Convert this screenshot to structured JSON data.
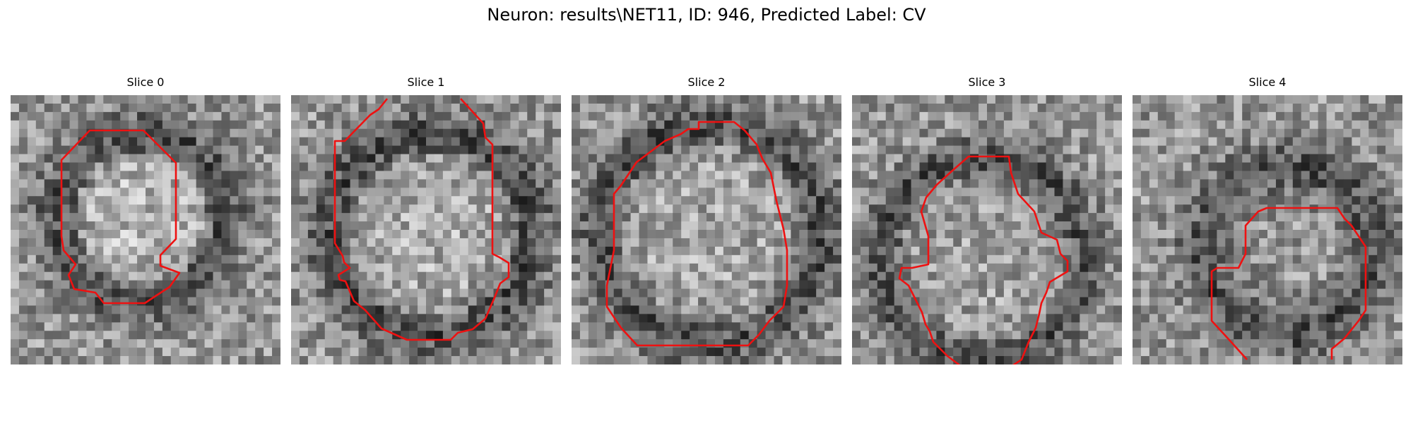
{
  "figure": {
    "suptitle": "Neuron: results\\NET11, ID: 946, Predicted Label: CV"
  },
  "panels": [
    {
      "title": "Slice 0"
    },
    {
      "title": "Slice 1"
    },
    {
      "title": "Slice 2"
    },
    {
      "title": "Slice 3"
    },
    {
      "title": "Slice 4"
    }
  ],
  "colors": {
    "contour": "#ee1111",
    "background": "#ffffff"
  }
}
